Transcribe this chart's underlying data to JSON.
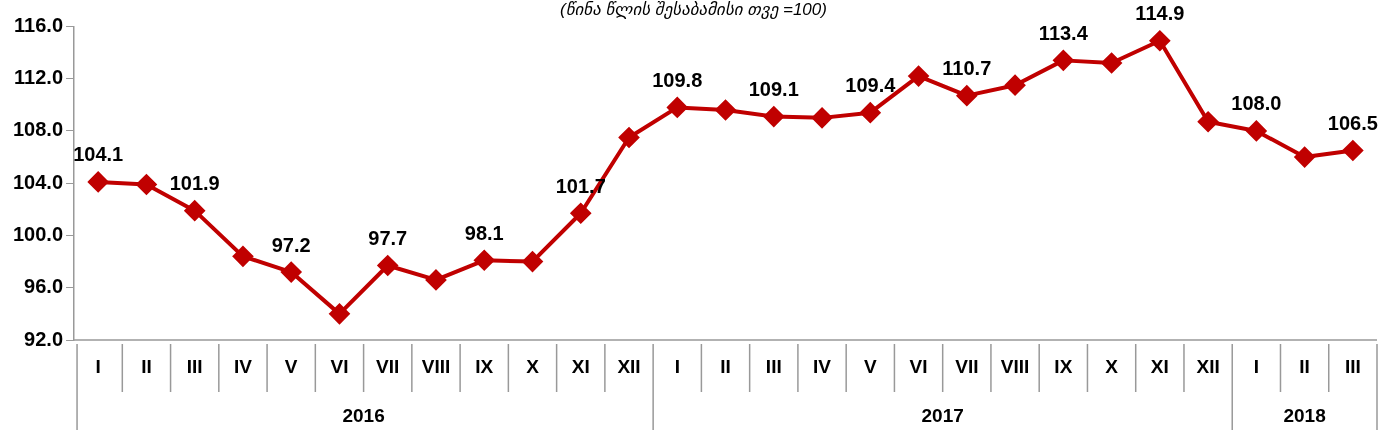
{
  "chart_data": {
    "type": "line",
    "subtitle": "(წინა წლის შესაბამისი თვე =100)",
    "categories": [
      "I",
      "II",
      "III",
      "IV",
      "V",
      "VI",
      "VII",
      "VIII",
      "IX",
      "X",
      "XI",
      "XII",
      "I",
      "II",
      "III",
      "IV",
      "V",
      "VI",
      "VII",
      "VIII",
      "IX",
      "X",
      "XI",
      "XII",
      "I",
      "II",
      "III"
    ],
    "series": [
      {
        "color": "#c00000",
        "values": [
          104.1,
          103.9,
          101.9,
          98.4,
          97.2,
          94.0,
          97.7,
          96.6,
          98.1,
          98.0,
          101.7,
          107.5,
          109.8,
          109.6,
          109.1,
          109.0,
          109.4,
          112.2,
          110.7,
          111.5,
          113.4,
          113.2,
          114.9,
          108.7,
          108.0,
          106.0,
          106.5
        ],
        "value_labels": [
          "104.1",
          null,
          "101.9",
          null,
          "97.2",
          null,
          "97.7",
          null,
          "98.1",
          null,
          "101.7",
          null,
          "109.8",
          null,
          "109.1",
          null,
          "109.4",
          null,
          "110.7",
          null,
          "113.4",
          null,
          "114.9",
          null,
          "108.0",
          null,
          "106.5"
        ]
      }
    ],
    "annotations": [
      "2016",
      "2017",
      "2018"
    ],
    "ylim": [
      92,
      116
    ],
    "yticks": [
      {
        "value": 92,
        "label": "92.0"
      },
      {
        "value": 96,
        "label": "96.0"
      },
      {
        "value": 100,
        "label": "100.0"
      },
      {
        "value": 104,
        "label": "104.0"
      },
      {
        "value": 108,
        "label": "108.0"
      },
      {
        "value": 112,
        "label": "112.0"
      },
      {
        "value": 116,
        "label": "116.0"
      }
    ],
    "grid": false,
    "legend": false,
    "marker": "diamond",
    "line_style": "solid"
  }
}
